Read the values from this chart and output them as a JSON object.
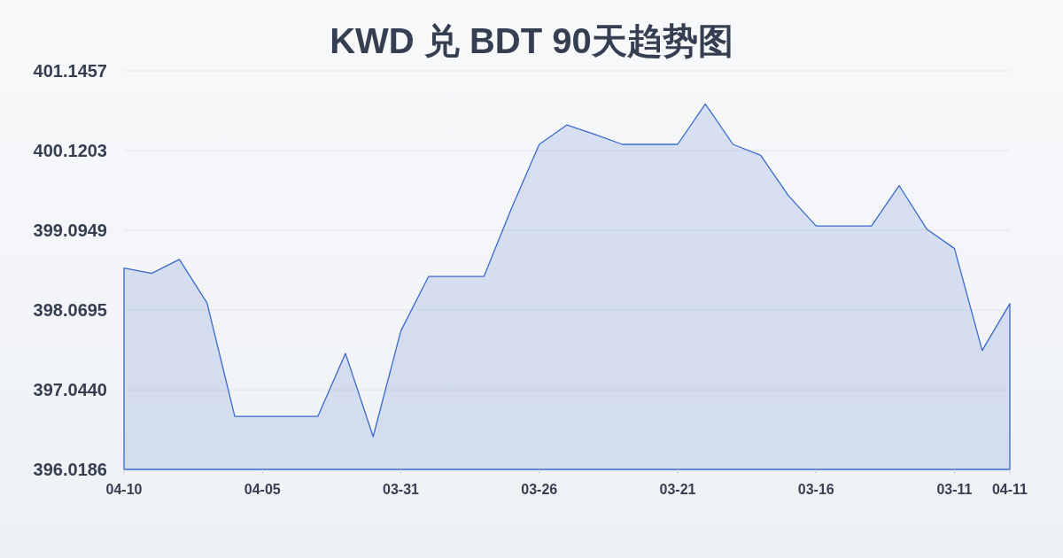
{
  "chart_data": {
    "type": "area",
    "title": "KWD 兑 BDT 90天趋势图",
    "categories": [
      "04-10",
      null,
      null,
      null,
      null,
      "04-05",
      null,
      null,
      null,
      null,
      "03-31",
      null,
      null,
      null,
      null,
      "03-26",
      null,
      null,
      null,
      null,
      "03-21",
      null,
      null,
      null,
      null,
      "03-16",
      null,
      null,
      null,
      null,
      "03-11",
      null,
      "04-11"
    ],
    "values": [
      398.61,
      398.54,
      398.72,
      398.16,
      396.7,
      396.7,
      396.7,
      396.7,
      397.51,
      396.44,
      397.8,
      398.5,
      398.5,
      398.5,
      399.38,
      400.2,
      400.45,
      400.33,
      400.2,
      400.2,
      400.2,
      400.72,
      400.2,
      400.06,
      399.54,
      399.15,
      399.15,
      399.15,
      399.67,
      399.11,
      398.86,
      397.55,
      398.15
    ],
    "color": "#3a68cc",
    "ylim": [
      396.0186,
      401.1457
    ],
    "yticks": [
      396.0186,
      {
        "value": 397.044,
        "label": "397.0440"
      },
      398.0695,
      399.0949,
      400.1203,
      401.1457
    ],
    "grid": "y"
  }
}
